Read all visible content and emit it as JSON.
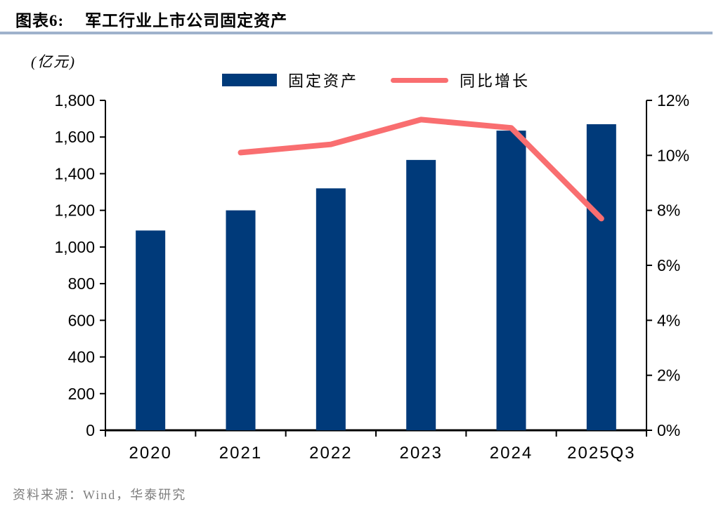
{
  "page": {
    "title_prefix": "图表6:",
    "title": "军工行业上市公司固定资产",
    "source": "资料来源：Wind，华泰研究"
  },
  "legend": [
    {
      "label": "固定资产",
      "swatch": "bar",
      "color": "#003A7A"
    },
    {
      "label": "同比增长",
      "swatch": "line",
      "color": "#F96E70"
    }
  ],
  "colors": {
    "bar": "#003A7A",
    "line": "#F96E70",
    "title_rule": "#9FB2CC",
    "axis": "#000000",
    "source_text": "#7E7E7E"
  },
  "chart_data": {
    "type": "bar+line",
    "title": "军工行业上市公司固定资产",
    "unit_left": "(亿元)",
    "legend_position": "top",
    "grid": false,
    "categories": [
      "2020",
      "2021",
      "2022",
      "2023",
      "2024",
      "2025Q3"
    ],
    "series": [
      {
        "name": "固定资产",
        "type": "bar",
        "axis": "left",
        "color": "#003A7A",
        "values": [
          1090,
          1200,
          1320,
          1475,
          1635,
          1670
        ]
      },
      {
        "name": "同比增长",
        "type": "line",
        "axis": "right",
        "color": "#F96E70",
        "values": [
          null,
          10.1,
          10.4,
          11.3,
          11.0,
          7.7
        ]
      }
    ],
    "left_axis": {
      "label": "(亿元)",
      "min": 0,
      "max": 1800,
      "step": 200,
      "tick_labels": [
        "0",
        "200",
        "400",
        "600",
        "800",
        "1,000",
        "1,200",
        "1,400",
        "1,600",
        "1,800"
      ]
    },
    "right_axis": {
      "min": 0,
      "max": 12,
      "step": 2,
      "tick_labels": [
        "0%",
        "2%",
        "4%",
        "6%",
        "8%",
        "10%",
        "12%"
      ]
    }
  }
}
